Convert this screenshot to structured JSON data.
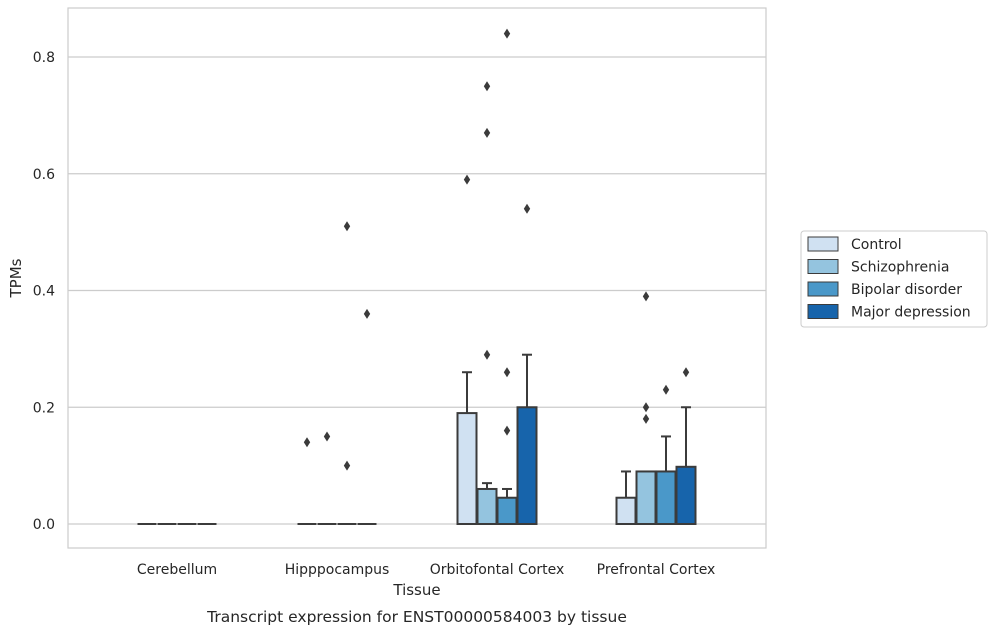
{
  "chart_data": {
    "type": "box",
    "xlabel": "Tissue",
    "ylabel": "TPMs",
    "caption": "Transcript expression for ENST00000584003 by tissue",
    "categories": [
      "Cerebellum",
      "Hipppocampus",
      "Orbitofontal Cortex",
      "Prefrontal Cortex"
    ],
    "yticks": [
      "0.0",
      "0.2",
      "0.4",
      "0.6",
      "0.8"
    ],
    "ylim": [
      -0.04,
      0.886
    ],
    "grid": true,
    "legend_position": "right",
    "series": [
      {
        "name": "Control",
        "color": "#d0e1f2",
        "boxes": [
          {
            "q1": 0,
            "q3": 0,
            "median": 0,
            "whisker_high": 0,
            "outliers": []
          },
          {
            "q1": 0,
            "q3": 0,
            "median": 0,
            "whisker_high": 0,
            "outliers": [
              0.14
            ]
          },
          {
            "q1": 0,
            "q3": 0.19,
            "median": 0,
            "whisker_high": 0.26,
            "outliers": [
              0.59
            ]
          },
          {
            "q1": 0,
            "q3": 0.045,
            "median": 0,
            "whisker_high": 0.09,
            "outliers": []
          }
        ]
      },
      {
        "name": "Schizophrenia",
        "color": "#94c4df",
        "boxes": [
          {
            "q1": 0,
            "q3": 0,
            "median": 0,
            "whisker_high": 0,
            "outliers": []
          },
          {
            "q1": 0,
            "q3": 0,
            "median": 0,
            "whisker_high": 0,
            "outliers": [
              0.15
            ]
          },
          {
            "q1": 0,
            "q3": 0.06,
            "median": 0,
            "whisker_high": 0.07,
            "outliers": [
              0.29,
              0.67,
              0.75
            ]
          },
          {
            "q1": 0,
            "q3": 0.09,
            "median": 0,
            "whisker_high": 0.09,
            "outliers": [
              0.18,
              0.2,
              0.39
            ]
          }
        ]
      },
      {
        "name": "Bipolar disorder",
        "color": "#4a98c9",
        "boxes": [
          {
            "q1": 0,
            "q3": 0,
            "median": 0,
            "whisker_high": 0,
            "outliers": []
          },
          {
            "q1": 0,
            "q3": 0,
            "median": 0,
            "whisker_high": 0,
            "outliers": [
              0.1,
              0.51
            ]
          },
          {
            "q1": 0,
            "q3": 0.045,
            "median": 0,
            "whisker_high": 0.06,
            "outliers": [
              0.16,
              0.26,
              0.84
            ]
          },
          {
            "q1": 0,
            "q3": 0.09,
            "median": 0,
            "whisker_high": 0.15,
            "outliers": [
              0.23
            ]
          }
        ]
      },
      {
        "name": "Major depression",
        "color": "#1764ab",
        "boxes": [
          {
            "q1": 0,
            "q3": 0,
            "median": 0,
            "whisker_high": 0,
            "outliers": []
          },
          {
            "q1": 0,
            "q3": 0,
            "median": 0,
            "whisker_high": 0,
            "outliers": [
              0.36
            ]
          },
          {
            "q1": 0,
            "q3": 0.2,
            "median": 0,
            "whisker_high": 0.29,
            "outliers": [
              0.54
            ]
          },
          {
            "q1": 0,
            "q3": 0.098,
            "median": 0,
            "whisker_high": 0.2,
            "outliers": [
              0.26
            ]
          }
        ]
      }
    ]
  }
}
